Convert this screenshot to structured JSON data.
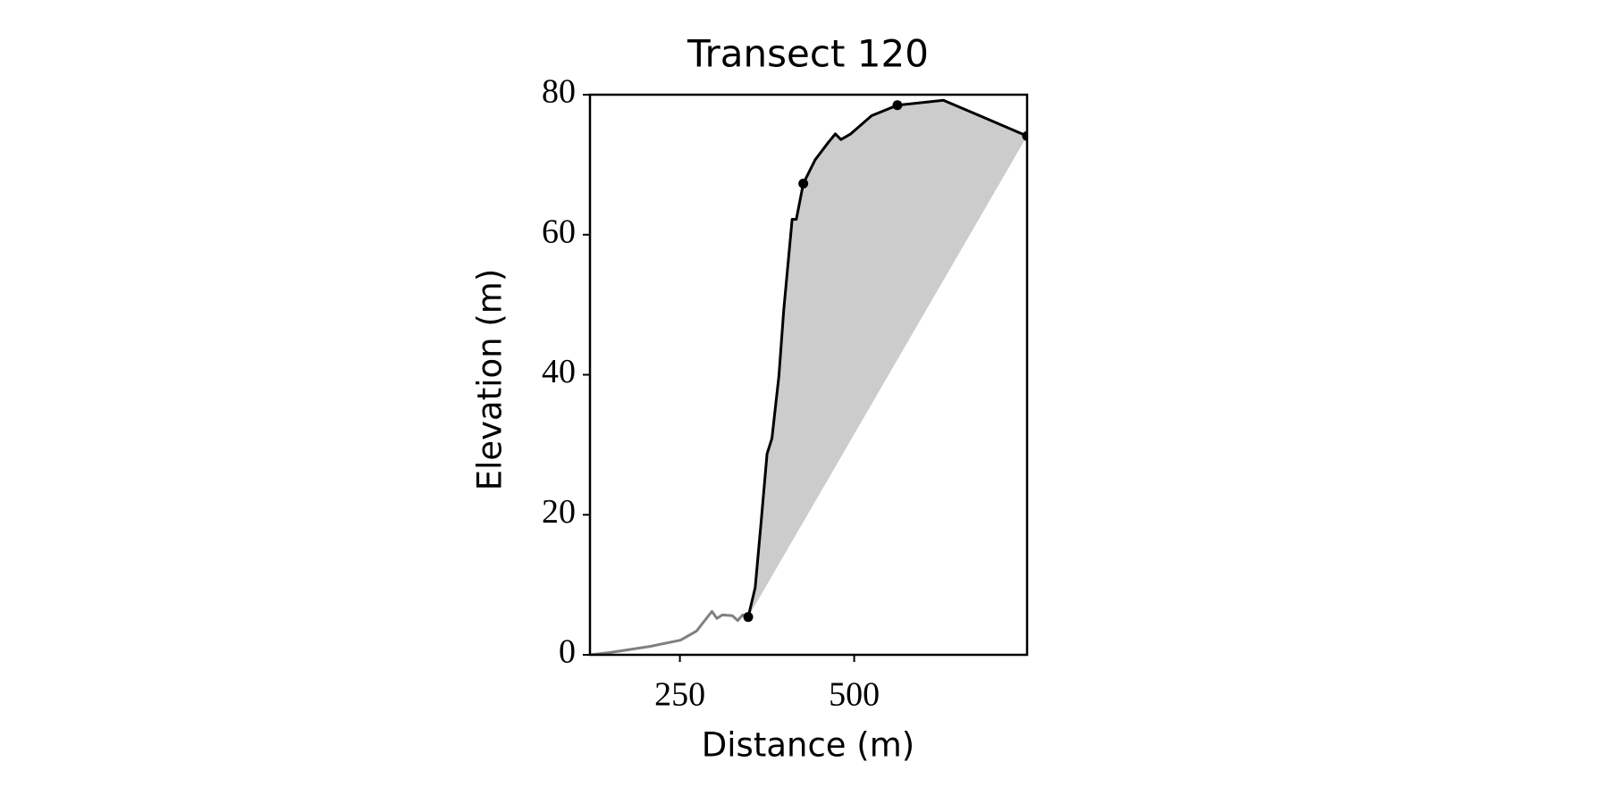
{
  "chart_data": {
    "type": "line",
    "title": "Transect 120",
    "x_label": "Distance (m)",
    "y_label": "Elevation (m)",
    "xlim": [
      121,
      748
    ],
    "ylim": [
      0,
      80
    ],
    "xticks": [
      250,
      500
    ],
    "yticks": [
      0,
      20,
      40,
      60,
      80
    ],
    "fill_color": "#cccccc",
    "series": [
      {
        "color": "#808080",
        "style": "line",
        "x": [
          121,
          148,
          207,
          251,
          274,
          288,
          296,
          303,
          311,
          325,
          333,
          340,
          348
        ],
        "values": [
          0,
          0.3,
          1.2,
          2.1,
          3.4,
          5.2,
          6.2,
          5.2,
          5.7,
          5.6,
          4.9,
          5.7,
          5.4
        ]
      },
      {
        "color": "#000000",
        "style": "line",
        "fill": true,
        "x": [
          348,
          358,
          366,
          375,
          382,
          392,
          399,
          411,
          417,
          427,
          444,
          463,
          473,
          481,
          495,
          525,
          562,
          628,
          680,
          748
        ],
        "values": [
          5.4,
          9.6,
          18.4,
          28.7,
          30.9,
          39.8,
          49.3,
          62.2,
          62.2,
          67.3,
          70.7,
          73.2,
          74.4,
          73.6,
          74.4,
          77.0,
          78.5,
          79.2,
          77.0,
          74.1
        ]
      },
      {
        "color": "#000000",
        "style": "markers",
        "x": [
          348,
          427,
          562,
          748
        ],
        "values": [
          5.4,
          67.3,
          78.5,
          74.1
        ]
      }
    ]
  }
}
